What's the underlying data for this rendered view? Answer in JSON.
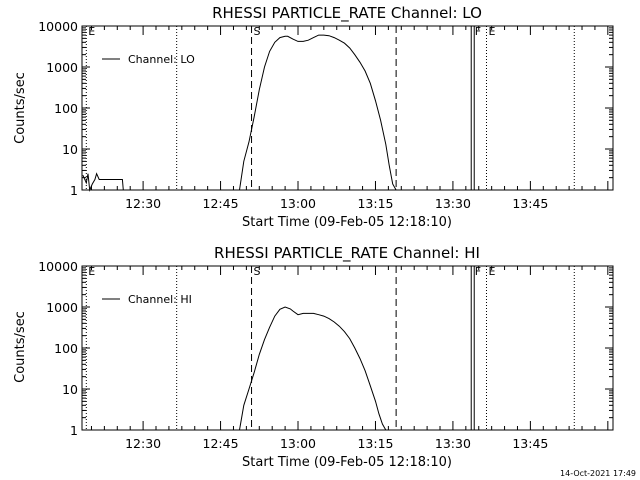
{
  "figure": {
    "footer_timestamp": "14-Oct-2021 17:49"
  },
  "chart_data": [
    {
      "type": "line",
      "title": "RHESSI PARTICLE_RATE Channel: LO",
      "xlabel": "Start Time (09-Feb-05 12:18:10)",
      "ylabel": "Counts/sec",
      "yscale": "log",
      "ylim": [
        1,
        10000
      ],
      "xlim": [
        "12:18:10",
        "14:01:00"
      ],
      "x_ticks": [
        "12:30",
        "12:45",
        "13:00",
        "13:15",
        "13:30",
        "13:45"
      ],
      "y_ticks": [
        "1",
        "10",
        "100",
        "1000",
        "10000"
      ],
      "legend": {
        "entries": [
          "Channel: LO"
        ],
        "position": "top-left"
      },
      "grid": false,
      "vertical_markers": [
        {
          "time": "12:19:00",
          "style": "dotted",
          "label": "E"
        },
        {
          "time": "12:36:30",
          "style": "dotted",
          "label": ""
        },
        {
          "time": "12:51:00",
          "style": "dashed",
          "label": "S"
        },
        {
          "time": "13:19:00",
          "style": "dashed",
          "label": ""
        },
        {
          "time": "13:33:50",
          "style": "solid",
          "label": "F"
        },
        {
          "time": "13:36:30",
          "style": "dotted",
          "label": "E"
        },
        {
          "time": "13:53:30",
          "style": "dotted",
          "label": ""
        }
      ],
      "series": [
        {
          "name": "Channel: LO",
          "x": [
            "12:18:20",
            "12:19:00",
            "12:19:20",
            "12:19:40",
            "12:20:10",
            "12:20:40",
            "12:21:00",
            "12:21:30",
            "12:22:00",
            "12:24:00",
            "12:26:00",
            "12:26:10"
          ],
          "y": [
            2.3,
            1.5,
            2.5,
            1.0,
            1.4,
            1.8,
            2.5,
            1.8,
            1.8,
            1.8,
            1.8,
            1.0
          ]
        },
        {
          "name": "Channel: LO",
          "x": [
            "12:48:40",
            "12:49:30",
            "12:50:30",
            "12:51:30",
            "12:52:30",
            "12:53:30",
            "12:54:30",
            "12:55:30",
            "12:56:30",
            "12:57:30",
            "12:58:00",
            "12:59:00",
            "13:00:00",
            "13:01:00",
            "13:02:00",
            "13:03:00",
            "13:04:00",
            "13:05:00",
            "13:06:00",
            "13:07:00",
            "13:08:00",
            "13:09:00",
            "13:10:00",
            "13:11:00",
            "13:12:00",
            "13:13:00",
            "13:14:00",
            "13:15:00",
            "13:16:00",
            "13:17:00",
            "13:17:40",
            "13:18:20",
            "13:19:00"
          ],
          "y": [
            1,
            5,
            15,
            60,
            280,
            1000,
            2400,
            4000,
            5200,
            5600,
            5600,
            4800,
            4200,
            4200,
            4500,
            5200,
            6000,
            6000,
            5800,
            5200,
            4500,
            3800,
            2900,
            2000,
            1300,
            800,
            400,
            150,
            50,
            13,
            4,
            1.4,
            1
          ]
        }
      ]
    },
    {
      "type": "line",
      "title": "RHESSI PARTICLE_RATE Channel: HI",
      "xlabel": "Start Time (09-Feb-05 12:18:10)",
      "ylabel": "Counts/sec",
      "yscale": "log",
      "ylim": [
        1,
        10000
      ],
      "xlim": [
        "12:18:10",
        "14:01:00"
      ],
      "x_ticks": [
        "12:30",
        "12:45",
        "13:00",
        "13:15",
        "13:30",
        "13:45"
      ],
      "y_ticks": [
        "1",
        "10",
        "100",
        "1000",
        "10000"
      ],
      "legend": {
        "entries": [
          "Channel: HI"
        ],
        "position": "top-left"
      },
      "grid": false,
      "vertical_markers": [
        {
          "time": "12:19:00",
          "style": "dotted",
          "label": "E"
        },
        {
          "time": "12:36:30",
          "style": "dotted",
          "label": ""
        },
        {
          "time": "12:51:00",
          "style": "dashed",
          "label": "S"
        },
        {
          "time": "13:19:00",
          "style": "dashed",
          "label": ""
        },
        {
          "time": "13:33:50",
          "style": "solid",
          "label": "F"
        },
        {
          "time": "13:36:30",
          "style": "dotted",
          "label": "E"
        },
        {
          "time": "13:53:30",
          "style": "dotted",
          "label": ""
        }
      ],
      "series": [
        {
          "name": "Channel: HI",
          "x": [
            "12:48:40",
            "12:49:30",
            "12:50:30",
            "12:51:30",
            "12:52:30",
            "12:53:30",
            "12:54:30",
            "12:55:30",
            "12:56:30",
            "12:57:30",
            "12:58:30",
            "12:59:00",
            "13:00:00",
            "13:01:00",
            "13:02:00",
            "13:03:00",
            "13:04:00",
            "13:05:00",
            "13:06:00",
            "13:07:00",
            "13:08:00",
            "13:09:00",
            "13:10:00",
            "13:11:00",
            "13:12:00",
            "13:13:00",
            "13:14:00",
            "13:15:00",
            "13:15:40",
            "13:16:20",
            "13:17:00"
          ],
          "y": [
            1,
            4,
            10,
            25,
            70,
            160,
            320,
            600,
            880,
            1000,
            900,
            800,
            650,
            700,
            700,
            700,
            650,
            600,
            520,
            430,
            340,
            250,
            170,
            100,
            55,
            28,
            12,
            5,
            2.5,
            1.4,
            1
          ]
        }
      ]
    }
  ]
}
